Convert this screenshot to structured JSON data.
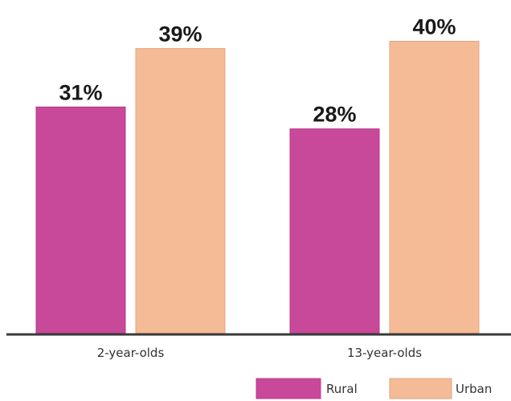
{
  "chart_data": {
    "type": "bar",
    "title": "",
    "xlabel": "",
    "ylabel": "",
    "categories": [
      "2-year-olds",
      "13-year-olds"
    ],
    "series": [
      {
        "name": "Rural",
        "values": [
          31,
          28
        ],
        "labels": [
          "31%",
          "28%"
        ],
        "color": "#c8489a"
      },
      {
        "name": "Urban",
        "values": [
          39,
          40
        ],
        "labels": [
          "39%",
          "40%"
        ],
        "color": "#f5bb97"
      }
    ],
    "ylim": [
      0,
      40
    ],
    "grid": false,
    "legend_position": "bottom-right"
  }
}
